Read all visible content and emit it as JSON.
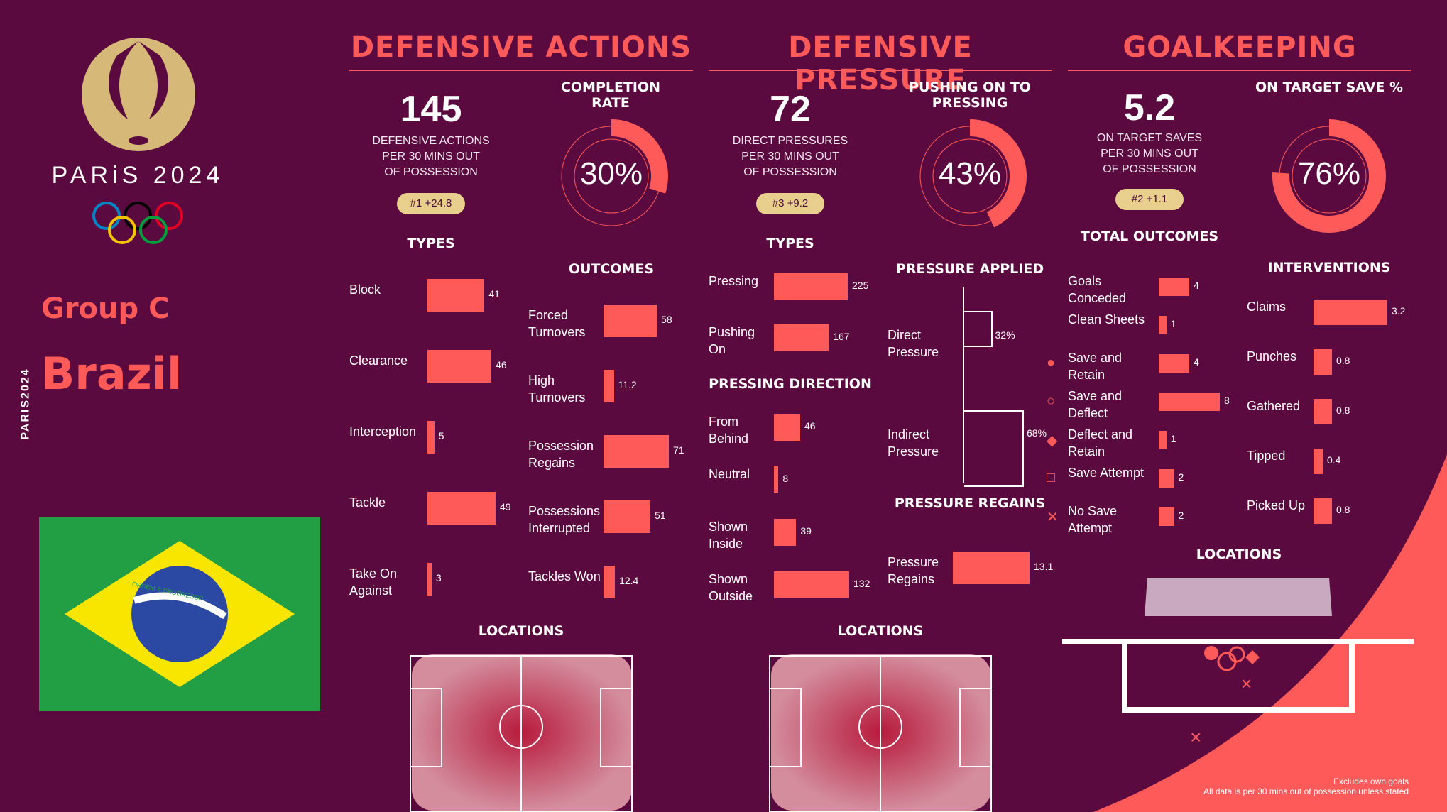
{
  "branding": {
    "city": "PARiS 2024",
    "vertical": "PARIS2024",
    "group": "Group C",
    "team": "Brazil",
    "flag_motto": "ORDEM E PROGRESSO"
  },
  "colors": {
    "bg": "#5a0a3f",
    "accent": "#ff5a5a",
    "gold": "#e8cf8d"
  },
  "defensive_actions": {
    "title": "DEFENSIVE ACTIONS",
    "value": "145",
    "desc": [
      "DEFENSIVE ACTIONS",
      "PER 30 MINS OUT",
      "OF POSSESSION"
    ],
    "rank": "#1 +24.8",
    "completion_title": "COMPLETION RATE",
    "completion": 30,
    "completion_label": "30%",
    "types_title": "TYPES",
    "outcomes_title": "OUTCOMES",
    "locations_title": "LOCATIONS",
    "types": [
      {
        "label": "Block",
        "value": 41
      },
      {
        "label": "Clearance",
        "value": 46
      },
      {
        "label": "Interception",
        "value": 5
      },
      {
        "label": "Tackle",
        "value": 49
      },
      {
        "label": "Take On Against",
        "value": 3
      }
    ],
    "outcomes": [
      {
        "label": "Forced Turnovers",
        "value": 58
      },
      {
        "label": "High Turnovers",
        "value": 11.2
      },
      {
        "label": "Possession Regains",
        "value": 71
      },
      {
        "label": "Possessions Interrupted",
        "value": 51
      },
      {
        "label": "Tackles Won",
        "value": 12.4
      }
    ]
  },
  "defensive_pressure": {
    "title": "DEFENSIVE PRESSURE",
    "value": "72",
    "desc": [
      "DIRECT PRESSURES",
      "PER 30 MINS OUT",
      "OF POSSESSION"
    ],
    "rank": "#3 +9.2",
    "pushing_title": "PUSHING ON TO PRESSING",
    "pushing": 43,
    "pushing_label": "43%",
    "types_title": "TYPES",
    "direction_title": "PRESSING DIRECTION",
    "applied_title": "PRESSURE APPLIED",
    "regains_title": "PRESSURE REGAINS",
    "locations_title": "LOCATIONS",
    "types": [
      {
        "label": "Pressing",
        "value": 225
      },
      {
        "label": "Pushing On",
        "value": 167
      }
    ],
    "direction": [
      {
        "label": "From Behind",
        "value": 46
      },
      {
        "label": "Neutral",
        "value": 8
      },
      {
        "label": "Shown Inside",
        "value": 39
      },
      {
        "label": "Shown Outside",
        "value": 132
      }
    ],
    "applied": [
      {
        "label": "Direct Pressure",
        "value": 32,
        "text": "32%"
      },
      {
        "label": "Indirect Pressure",
        "value": 68,
        "text": "68%"
      }
    ],
    "regains": [
      {
        "label": "Pressure Regains",
        "value": 13.1
      }
    ]
  },
  "goalkeeping": {
    "title": "GOALKEEPING",
    "value": "5.2",
    "desc": [
      "ON TARGET SAVES",
      "PER 30 MINS OUT",
      "OF POSSESSION"
    ],
    "rank": "#2 +1.1",
    "save_title": "ON TARGET SAVE %",
    "save": 76,
    "save_label": "76%",
    "outcomes_title": "TOTAL OUTCOMES",
    "interventions_title": "INTERVENTIONS",
    "locations_title": "LOCATIONS",
    "outcomes": [
      {
        "label": "Goals Conceded",
        "value": 4,
        "marker": ""
      },
      {
        "label": "Clean Sheets",
        "value": 1,
        "marker": ""
      },
      {
        "label": "Save and Retain",
        "value": 4,
        "marker": "circle-filled"
      },
      {
        "label": "Save and Deflect",
        "value": 8,
        "marker": "circle-open"
      },
      {
        "label": "Deflect and Retain",
        "value": 1,
        "marker": "diamond"
      },
      {
        "label": "Save Attempt",
        "value": 2,
        "marker": "square"
      },
      {
        "label": "No Save Attempt",
        "value": 2,
        "marker": "x"
      }
    ],
    "interventions": [
      {
        "label": "Claims",
        "value": 3.2
      },
      {
        "label": "Punches",
        "value": 0.8
      },
      {
        "label": "Gathered",
        "value": 0.8
      },
      {
        "label": "Tipped",
        "value": 0.4
      },
      {
        "label": "Picked Up",
        "value": 0.8
      }
    ]
  },
  "footer": {
    "line1": "Excludes own goals",
    "line2": "All data is per 30 mins out of possession unless stated"
  },
  "chart_data": [
    {
      "type": "bar",
      "title": "TYPES",
      "categories": [
        "Block",
        "Clearance",
        "Interception",
        "Tackle",
        "Take On Against"
      ],
      "values": [
        41,
        46,
        5,
        49,
        3
      ]
    },
    {
      "type": "bar",
      "title": "OUTCOMES",
      "categories": [
        "Forced Turnovers",
        "High Turnovers",
        "Possession Regains",
        "Possessions Interrupted",
        "Tackles Won"
      ],
      "values": [
        58,
        11.2,
        71,
        51,
        12.4
      ]
    },
    {
      "type": "pie",
      "title": "COMPLETION RATE",
      "values": [
        30,
        70
      ]
    },
    {
      "type": "bar",
      "title": "TYPES",
      "categories": [
        "Pressing",
        "Pushing On"
      ],
      "values": [
        225,
        167
      ]
    },
    {
      "type": "bar",
      "title": "PRESSING DIRECTION",
      "categories": [
        "From Behind",
        "Neutral",
        "Shown Inside",
        "Shown Outside"
      ],
      "values": [
        46,
        8,
        39,
        132
      ]
    },
    {
      "type": "bar",
      "title": "PRESSURE APPLIED",
      "categories": [
        "Direct Pressure",
        "Indirect Pressure"
      ],
      "values": [
        32,
        68
      ]
    },
    {
      "type": "bar",
      "title": "PRESSURE REGAINS",
      "categories": [
        "Pressure Regains"
      ],
      "values": [
        13.1
      ]
    },
    {
      "type": "pie",
      "title": "PUSHING ON TO PRESSING",
      "values": [
        43,
        57
      ]
    },
    {
      "type": "bar",
      "title": "TOTAL OUTCOMES",
      "categories": [
        "Goals Conceded",
        "Clean Sheets",
        "Save and Retain",
        "Save and Deflect",
        "Deflect and Retain",
        "Save Attempt",
        "No Save Attempt"
      ],
      "values": [
        4,
        1,
        4,
        8,
        1,
        2,
        2
      ]
    },
    {
      "type": "bar",
      "title": "INTERVENTIONS",
      "categories": [
        "Claims",
        "Punches",
        "Gathered",
        "Tipped",
        "Picked Up"
      ],
      "values": [
        3.2,
        0.8,
        0.8,
        0.4,
        0.8
      ]
    },
    {
      "type": "pie",
      "title": "ON TARGET SAVE %",
      "values": [
        76,
        24
      ]
    }
  ]
}
